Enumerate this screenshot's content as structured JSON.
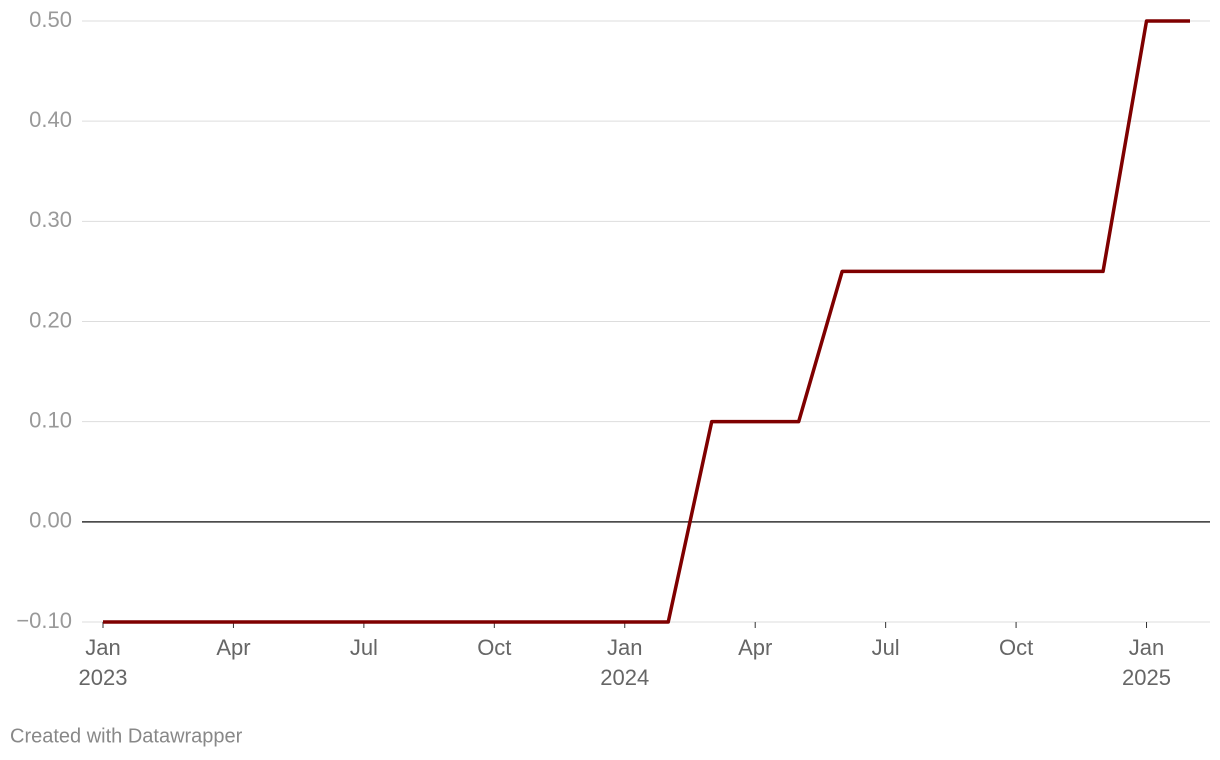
{
  "chart_data": {
    "type": "line",
    "x": [
      "2023-01",
      "2024-02",
      "2024-03",
      "2024-05",
      "2024-06",
      "2024-12",
      "2025-01",
      "2025-02"
    ],
    "series": [
      {
        "color": "#7f0000",
        "values": [
          -0.1,
          -0.1,
          0.1,
          0.1,
          0.25,
          0.25,
          0.5,
          0.5
        ]
      }
    ],
    "xlim": [
      "2023-01",
      "2025-02"
    ],
    "xticks": [
      {
        "value": "2023-01",
        "label": "Jan",
        "year": "2023"
      },
      {
        "value": "2023-04",
        "label": "Apr"
      },
      {
        "value": "2023-07",
        "label": "Jul"
      },
      {
        "value": "2023-10",
        "label": "Oct"
      },
      {
        "value": "2024-01",
        "label": "Jan",
        "year": "2024"
      },
      {
        "value": "2024-04",
        "label": "Apr"
      },
      {
        "value": "2024-07",
        "label": "Jul"
      },
      {
        "value": "2024-10",
        "label": "Oct"
      },
      {
        "value": "2025-01",
        "label": "Jan",
        "year": "2025"
      }
    ],
    "ylim": [
      -0.1,
      0.5
    ],
    "yticks": [
      {
        "value": -0.1,
        "label": "−0.10"
      },
      {
        "value": 0,
        "label": "0.00"
      },
      {
        "value": 0.1,
        "label": "0.10"
      },
      {
        "value": 0.2,
        "label": "0.20"
      },
      {
        "value": 0.3,
        "label": "0.30"
      },
      {
        "value": 0.4,
        "label": "0.40"
      },
      {
        "value": 0.5,
        "label": "0.50"
      }
    ],
    "grid": true,
    "footer": "Created with Datawrapper"
  }
}
